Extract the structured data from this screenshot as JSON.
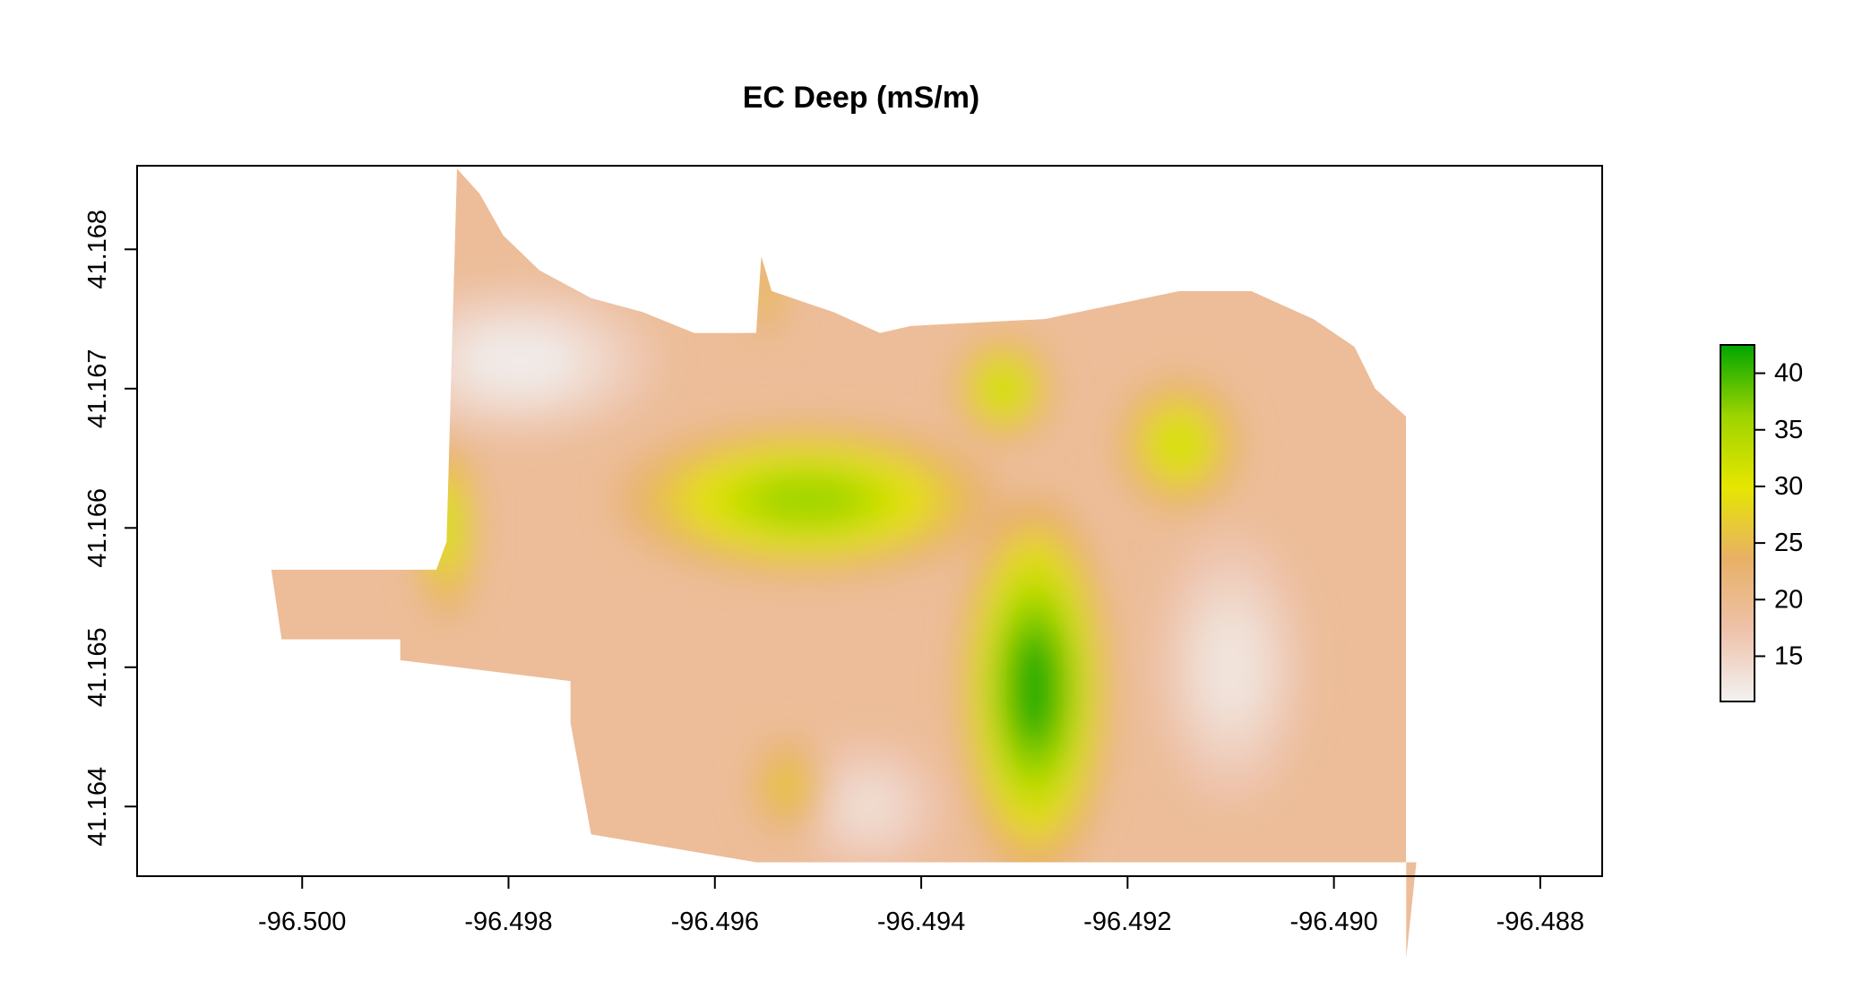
{
  "chart_data": {
    "type": "heatmap",
    "title": "EC Deep (mS/m)",
    "xlabel": "",
    "ylabel": "",
    "x_ticks": [
      "-96.500",
      "-96.498",
      "-96.496",
      "-96.494",
      "-96.492",
      "-96.490",
      "-96.488"
    ],
    "x_tick_values": [
      -96.5,
      -96.498,
      -96.496,
      -96.494,
      -96.492,
      -96.49,
      -96.488
    ],
    "y_ticks": [
      "41.164",
      "41.165",
      "41.166",
      "41.167",
      "41.168"
    ],
    "y_tick_values": [
      41.164,
      41.165,
      41.166,
      41.167,
      41.168
    ],
    "xlim": [
      -96.5016,
      -96.4874
    ],
    "ylim": [
      41.1635,
      41.1686
    ],
    "legend": {
      "placement": "right",
      "ticks": [
        "15",
        "20",
        "25",
        "30",
        "35",
        "40"
      ],
      "tick_values": [
        15,
        20,
        25,
        30,
        35,
        40
      ],
      "range": [
        11,
        42.5
      ],
      "colors": [
        "#f2f2f2",
        "#eec2aa",
        "#e8b067",
        "#e6e600",
        "#9ed400",
        "#00a600"
      ]
    },
    "field_boundary": [
      [
        -96.4985,
        41.16858
      ],
      [
        -96.49828,
        41.1684
      ],
      [
        -96.49805,
        41.1681
      ],
      [
        -96.4977,
        41.16785
      ],
      [
        -96.4972,
        41.16765
      ],
      [
        -96.4967,
        41.16755
      ],
      [
        -96.4962,
        41.1674
      ],
      [
        -96.4956,
        41.1674
      ],
      [
        -96.49555,
        41.16795
      ],
      [
        -96.49545,
        41.1677
      ],
      [
        -96.49485,
        41.16755
      ],
      [
        -96.4944,
        41.1674
      ],
      [
        -96.4941,
        41.16745
      ],
      [
        -96.4928,
        41.1675
      ],
      [
        -96.4915,
        41.1677
      ],
      [
        -96.4908,
        41.1677
      ],
      [
        -96.4902,
        41.1675
      ],
      [
        -96.4898,
        41.1673
      ],
      [
        -96.4896,
        41.167
      ],
      [
        -96.4893,
        41.1668
      ],
      [
        -96.4893,
        41.1629
      ],
      [
        -96.4892,
        41.1636
      ],
      [
        -96.4918,
        41.1636
      ],
      [
        -96.4934,
        41.1636
      ],
      [
        -96.4956,
        41.1636
      ],
      [
        -96.4972,
        41.1638
      ],
      [
        -96.4974,
        41.1646
      ],
      [
        -96.4974,
        41.1649
      ],
      [
        -96.49905,
        41.16505
      ],
      [
        -96.49905,
        41.1652
      ],
      [
        -96.5002,
        41.1652
      ],
      [
        -96.5003,
        41.1657
      ],
      [
        -96.4987,
        41.1657
      ],
      [
        -96.4986,
        41.1659
      ]
    ],
    "hotspots": [
      {
        "lon": -96.4951,
        "lat": 41.1662,
        "value": 36,
        "rx": 0.0015,
        "ry": 0.00045
      },
      {
        "lon": -96.4932,
        "lat": 41.167,
        "value": 33,
        "rx": 0.0004,
        "ry": 0.00032
      },
      {
        "lon": -96.4915,
        "lat": 41.1666,
        "value": 32,
        "rx": 0.0005,
        "ry": 0.0004
      },
      {
        "lon": -96.4929,
        "lat": 41.16485,
        "value": 42,
        "rx": 0.0006,
        "ry": 0.0011
      },
      {
        "lon": -96.4986,
        "lat": 41.166,
        "value": 32,
        "rx": 0.00025,
        "ry": 0.00055
      },
      {
        "lon": -96.4953,
        "lat": 41.16415,
        "value": 27,
        "rx": 0.0003,
        "ry": 0.0003
      },
      {
        "lon": -96.4955,
        "lat": 41.1677,
        "value": 26,
        "rx": 0.00015,
        "ry": 0.0003
      }
    ],
    "lowspots": [
      {
        "lon": -96.4979,
        "lat": 41.1672,
        "value": 12,
        "rx": 0.0011,
        "ry": 0.00045
      },
      {
        "lon": -96.491,
        "lat": 41.165,
        "value": 13,
        "rx": 0.0006,
        "ry": 0.0008
      },
      {
        "lon": -96.4945,
        "lat": 41.164,
        "value": 14,
        "rx": 0.0006,
        "ry": 0.0004
      }
    ],
    "base_value": 19,
    "grid": false
  }
}
